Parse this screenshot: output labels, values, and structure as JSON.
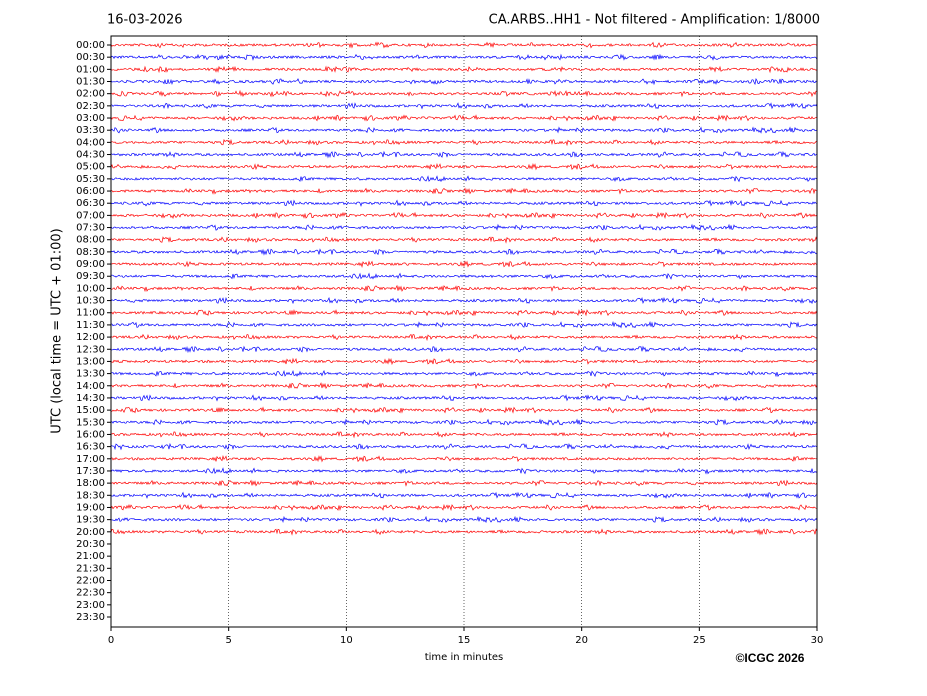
{
  "chart_data": {
    "type": "helicorder",
    "date": "16-03-2026",
    "title": "CA.ARBS..HH1 - Not filtered - Amplification: 1/8000",
    "ylabel": "UTC (local time = UTC + 01:00)",
    "xlabel": "time in minutes",
    "credit": "©ICGC 2026",
    "xlim": [
      0,
      30
    ],
    "xticks": [
      0,
      5,
      10,
      15,
      20,
      25,
      30
    ],
    "grid": true,
    "rows": [
      {
        "label": "00:00",
        "color": "#ff0000"
      },
      {
        "label": "00:30",
        "color": "#0000ff"
      },
      {
        "label": "01:00",
        "color": "#ff0000"
      },
      {
        "label": "01:30",
        "color": "#0000ff"
      },
      {
        "label": "02:00",
        "color": "#ff0000"
      },
      {
        "label": "02:30",
        "color": "#0000ff"
      },
      {
        "label": "03:00",
        "color": "#ff0000"
      },
      {
        "label": "03:30",
        "color": "#0000ff"
      },
      {
        "label": "04:00",
        "color": "#ff0000"
      },
      {
        "label": "04:30",
        "color": "#0000ff"
      },
      {
        "label": "05:00",
        "color": "#ff0000"
      },
      {
        "label": "05:30",
        "color": "#0000ff"
      },
      {
        "label": "06:00",
        "color": "#ff0000"
      },
      {
        "label": "06:30",
        "color": "#0000ff"
      },
      {
        "label": "07:00",
        "color": "#ff0000"
      },
      {
        "label": "07:30",
        "color": "#0000ff"
      },
      {
        "label": "08:00",
        "color": "#ff0000"
      },
      {
        "label": "08:30",
        "color": "#0000ff"
      },
      {
        "label": "09:00",
        "color": "#ff0000"
      },
      {
        "label": "09:30",
        "color": "#0000ff"
      },
      {
        "label": "10:00",
        "color": "#ff0000"
      },
      {
        "label": "10:30",
        "color": "#0000ff"
      },
      {
        "label": "11:00",
        "color": "#ff0000"
      },
      {
        "label": "11:30",
        "color": "#0000ff"
      },
      {
        "label": "12:00",
        "color": "#ff0000"
      },
      {
        "label": "12:30",
        "color": "#0000ff"
      },
      {
        "label": "13:00",
        "color": "#ff0000"
      },
      {
        "label": "13:30",
        "color": "#0000ff"
      },
      {
        "label": "14:00",
        "color": "#ff0000"
      },
      {
        "label": "14:30",
        "color": "#0000ff"
      },
      {
        "label": "15:00",
        "color": "#ff0000"
      },
      {
        "label": "15:30",
        "color": "#0000ff"
      },
      {
        "label": "16:00",
        "color": "#ff0000"
      },
      {
        "label": "16:30",
        "color": "#0000ff"
      },
      {
        "label": "17:00",
        "color": "#ff0000"
      },
      {
        "label": "17:30",
        "color": "#0000ff"
      },
      {
        "label": "18:00",
        "color": "#ff0000"
      },
      {
        "label": "18:30",
        "color": "#0000ff"
      },
      {
        "label": "19:00",
        "color": "#ff0000"
      },
      {
        "label": "19:30",
        "color": "#0000ff"
      },
      {
        "label": "20:00",
        "color": "#ff0000"
      },
      {
        "label": "20:30"
      },
      {
        "label": "21:00"
      },
      {
        "label": "21:30"
      },
      {
        "label": "22:00"
      },
      {
        "label": "22:30"
      },
      {
        "label": "23:00"
      },
      {
        "label": "23:30"
      }
    ]
  }
}
